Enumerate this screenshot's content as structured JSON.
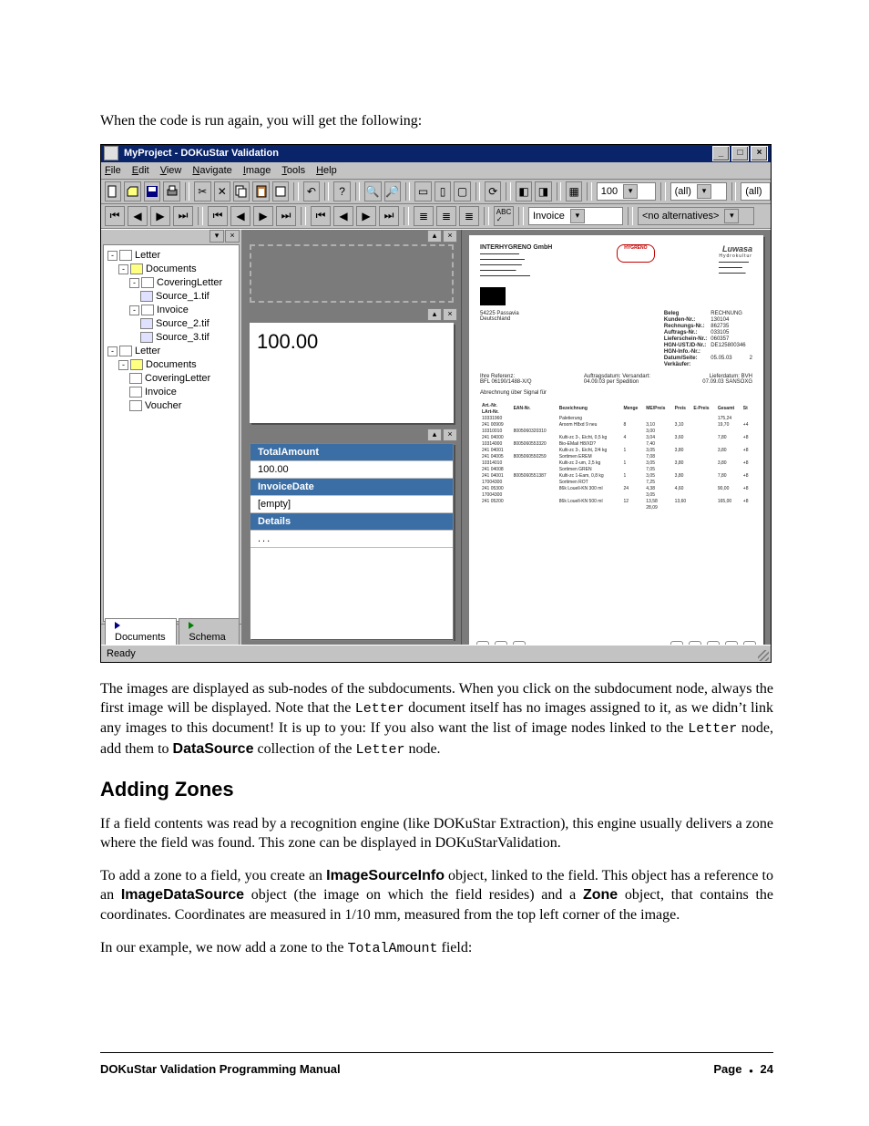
{
  "intro_text": "When the code is run again, you will get the following:",
  "app": {
    "title": "MyProject - DOKuStar Validation",
    "menu": [
      "File",
      "Edit",
      "View",
      "Navigate",
      "Image",
      "Tools",
      "Help"
    ],
    "toolbar2": {
      "invoice": "Invoice",
      "alternatives": "<no alternatives>"
    },
    "toolbar1": {
      "zoom": "100",
      "filter1": "(all)",
      "filter2": "(all)"
    },
    "tree": {
      "nodes": [
        {
          "label": "Letter",
          "icon": "doc",
          "children": [
            {
              "label": "Documents",
              "icon": "folder",
              "children": [
                {
                  "label": "CoveringLetter",
                  "icon": "doc",
                  "children": [
                    {
                      "label": "Source_1.tif",
                      "icon": "img"
                    }
                  ]
                },
                {
                  "label": "Invoice",
                  "icon": "doc",
                  "children": [
                    {
                      "label": "Source_2.tif",
                      "icon": "img"
                    },
                    {
                      "label": "Source_3.tif",
                      "icon": "img"
                    }
                  ]
                }
              ]
            }
          ]
        },
        {
          "label": "Letter",
          "icon": "doc",
          "children": [
            {
              "label": "Documents",
              "icon": "folder",
              "children": [
                {
                  "label": "CoveringLetter",
                  "icon": "doc"
                },
                {
                  "label": "Invoice",
                  "icon": "doc"
                },
                {
                  "label": "Voucher",
                  "icon": "doc"
                }
              ]
            }
          ]
        }
      ]
    },
    "tabs": {
      "documents": "Documents",
      "schema": "Schema"
    },
    "paper_value": "100.00",
    "fields": {
      "row1_title": "TotalAmount",
      "row2": "100.00",
      "row3_title": "InvoiceDate",
      "row4": "[empty]",
      "row5_title": "Details",
      "row6": "..."
    },
    "preview": {
      "company": "INTERHYGRENO  GmbH",
      "logo1": "HYGRENO",
      "logo2": "Luwasa",
      "logo2sub": "Hydrokultur",
      "addr_city": "54225 Passavia",
      "addr_country": "Deutschland",
      "meta_labels": {
        "beleg": "Beleg",
        "kunden": "Kunden-Nr.:",
        "rechnung": "Rechnungs-Nr.:",
        "auftrag": "Auftrags-Nr.:",
        "liefer": "Lieferschein-Nr.:",
        "ust": "HGN-UST.ID-Nr.:",
        "info": "HGN-Info.-Nr.:",
        "datum": "Datum/Seite:",
        "verk": "Verkäufer:"
      },
      "meta_values": {
        "beleg": "RECHNUNG",
        "kunden": "130104",
        "rechnung": "862735",
        "auftrag": "033105",
        "liefer": "060357",
        "ust": "DE125800346",
        "info": "",
        "datum": "05.05.03",
        "page": "2"
      },
      "ref_label": "Ihre Referenz:",
      "ref_value": "BFL 06190/1488-X/Q",
      "auftrag_lbl": "Auftragsdatum:",
      "auftrag_val": "04.09.03",
      "versand_lbl": "Versandart:",
      "versand_val": "per Spedition",
      "lieferdatum_lbl": "Lieferdatum:",
      "lieferdatum_val": "07.09.03",
      "bvh": "BVH",
      "bvh_val": "SANSOXG",
      "section": "Abrechnung über Signal für",
      "cols": [
        "Art.-Nr.",
        "EAN-Nr.",
        "Bezeichnung",
        "Menge",
        "ME/Preis",
        "Preis",
        "E-Preis",
        "Gesamt",
        "St"
      ],
      "artnr_lbl": "Art.-Nr.",
      "artnr_lbl2": "LArt-Nr.",
      "rows": [
        [
          "10331960",
          "",
          "Paletierung",
          "",
          "",
          "",
          "",
          "175,24",
          ""
        ],
        [
          "241 00909",
          "",
          "Aroom H8xd 9 neu",
          "8",
          "3,10",
          "3,10",
          "",
          "19,70",
          "+4"
        ],
        [
          "10310010",
          "8005060320310",
          "",
          "",
          "3,00",
          "",
          "",
          "",
          ""
        ],
        [
          "241 04000",
          "",
          "Kulti-zc 3-, Eicht, 0,5 kg",
          "4",
          "3,04",
          "3,60",
          "",
          "7,80",
          "+8"
        ],
        [
          "10314000",
          "8005060553320",
          "Bio-EMail H8/XD?",
          "",
          "7,40",
          "",
          "",
          "",
          ""
        ],
        [
          "241 04001",
          "",
          "Kulti-zc 3-, Eicht, 2/4 kg",
          "1",
          "3,05",
          "3,80",
          "",
          "3,80",
          "+8"
        ],
        [
          "241 04005",
          "8005060550259",
          "Sortimen EREM",
          "",
          "7,08",
          "",
          "",
          "",
          ""
        ],
        [
          "10314010",
          "",
          "Kulti-zc 2-um, 2,5 kg",
          "1",
          "3,05",
          "3,80",
          "",
          "3,80",
          "+8"
        ],
        [
          "241 04008",
          "",
          "Sortimen GREN",
          "",
          "7,05",
          "",
          "",
          "",
          ""
        ],
        [
          "241 04001",
          "8005060551387",
          "Kulti-zc 1-Eam, 0,8 kg",
          "1",
          "3,05",
          "3,80",
          "",
          "7,80",
          "+8"
        ],
        [
          "17004300",
          "",
          "Sortimen ROT",
          "",
          "7,25",
          "",
          "",
          "",
          ""
        ],
        [
          "241 05300",
          "",
          "86k Louell-KN 300 ml",
          "24",
          "4,38",
          "4,60",
          "",
          "90,00",
          "+8"
        ],
        [
          "17004300",
          "",
          "",
          "",
          "3,05",
          "",
          "",
          "",
          ""
        ],
        [
          "241 05200",
          "",
          "86k Louell-KN 500 ml",
          "12",
          "13,58",
          "13,60",
          "",
          "165,00",
          "+8"
        ],
        [
          "",
          "",
          "",
          "",
          "28,09",
          "",
          "",
          "",
          ""
        ]
      ]
    },
    "status": "Ready"
  },
  "para2_parts": [
    "The images are displayed as sub-nodes of the subdocuments. When you click on the subdocument node, always the first image will be displayed. Note that the ",
    "Letter",
    " document itself has no images assigned to it, as we didn’t link any images to this document! It is up to you: If you also want the list of image nodes linked to the ",
    "Letter",
    " node, add them to ",
    "DataSource",
    " collection of the ",
    "Letter",
    " node."
  ],
  "heading": "Adding Zones",
  "para3": "If a field contents was read by a recognition engine (like DOKuStar Extraction), this engine usually delivers a zone where the field was found. This zone can be displayed in DOKuStarValidation.",
  "para4_parts": [
    "To add a zone to a field, you create an ",
    "ImageSourceInfo",
    " object, linked to the field. This object has a reference to an ",
    "ImageDataSource",
    " object (the image on which the field resides) and a ",
    "Zone",
    " object, that contains the coordinates. Coordinates are measured in 1/10 mm, measured from the top left corner of the image."
  ],
  "para5_parts": [
    "In our example, we now add a zone to the ",
    "TotalAmount",
    " field:"
  ],
  "footer": {
    "left": "DOKuStar Validation Programming Manual",
    "right_label": "Page",
    "right_num": "24"
  }
}
